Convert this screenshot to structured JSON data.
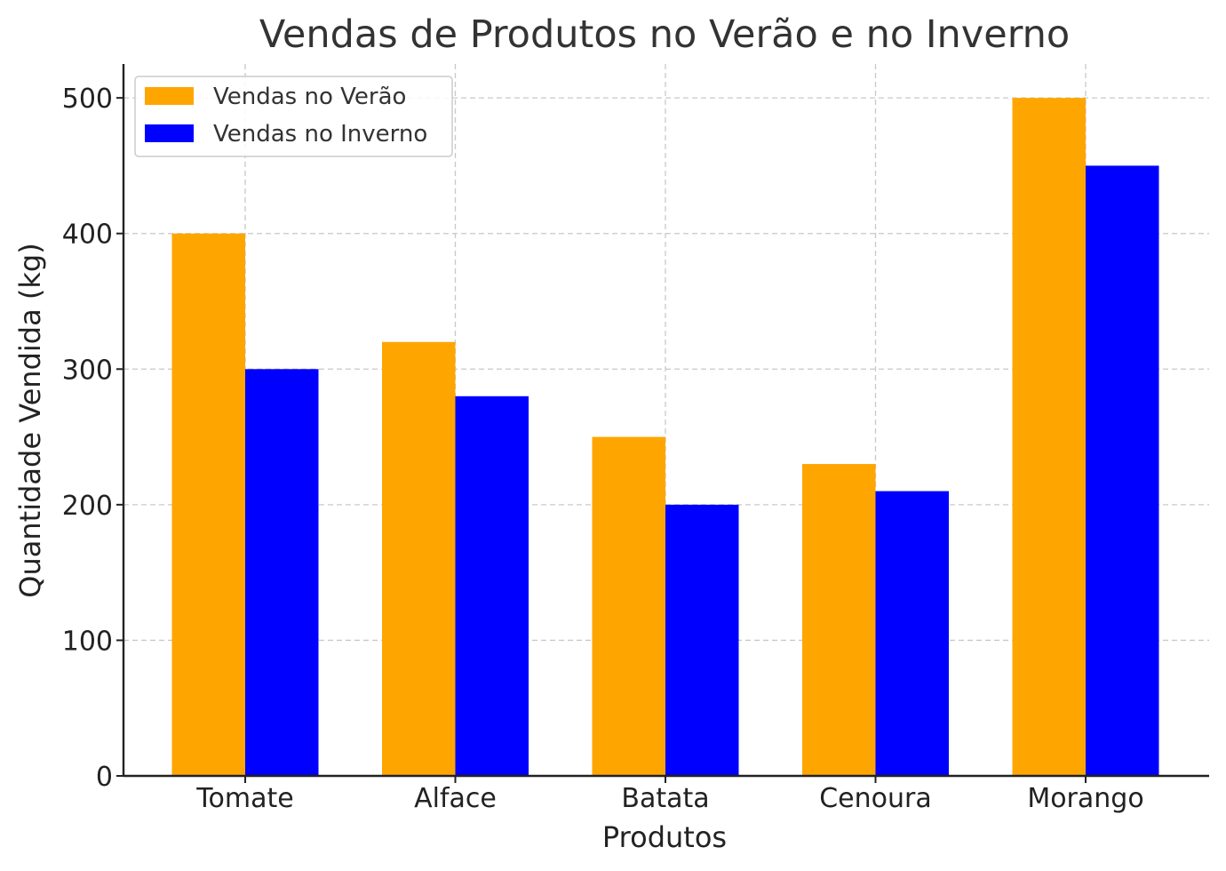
{
  "chart_data": {
    "type": "bar",
    "title": "Vendas de Produtos no Verão e no Inverno",
    "xlabel": "Produtos",
    "ylabel": "Quantidade Vendida (kg)",
    "categories": [
      "Tomate",
      "Alface",
      "Batata",
      "Cenoura",
      "Morango"
    ],
    "series": [
      {
        "name": "Vendas no Verão",
        "color": "#FFA500",
        "values": [
          400,
          320,
          250,
          230,
          500
        ]
      },
      {
        "name": "Vendas no Inverno",
        "color": "#0000FF",
        "values": [
          300,
          280,
          200,
          210,
          450
        ]
      }
    ],
    "ylim": [
      0,
      525
    ],
    "yticks": [
      0,
      100,
      200,
      300,
      400,
      500
    ],
    "grid": true,
    "legend": "top-left"
  }
}
